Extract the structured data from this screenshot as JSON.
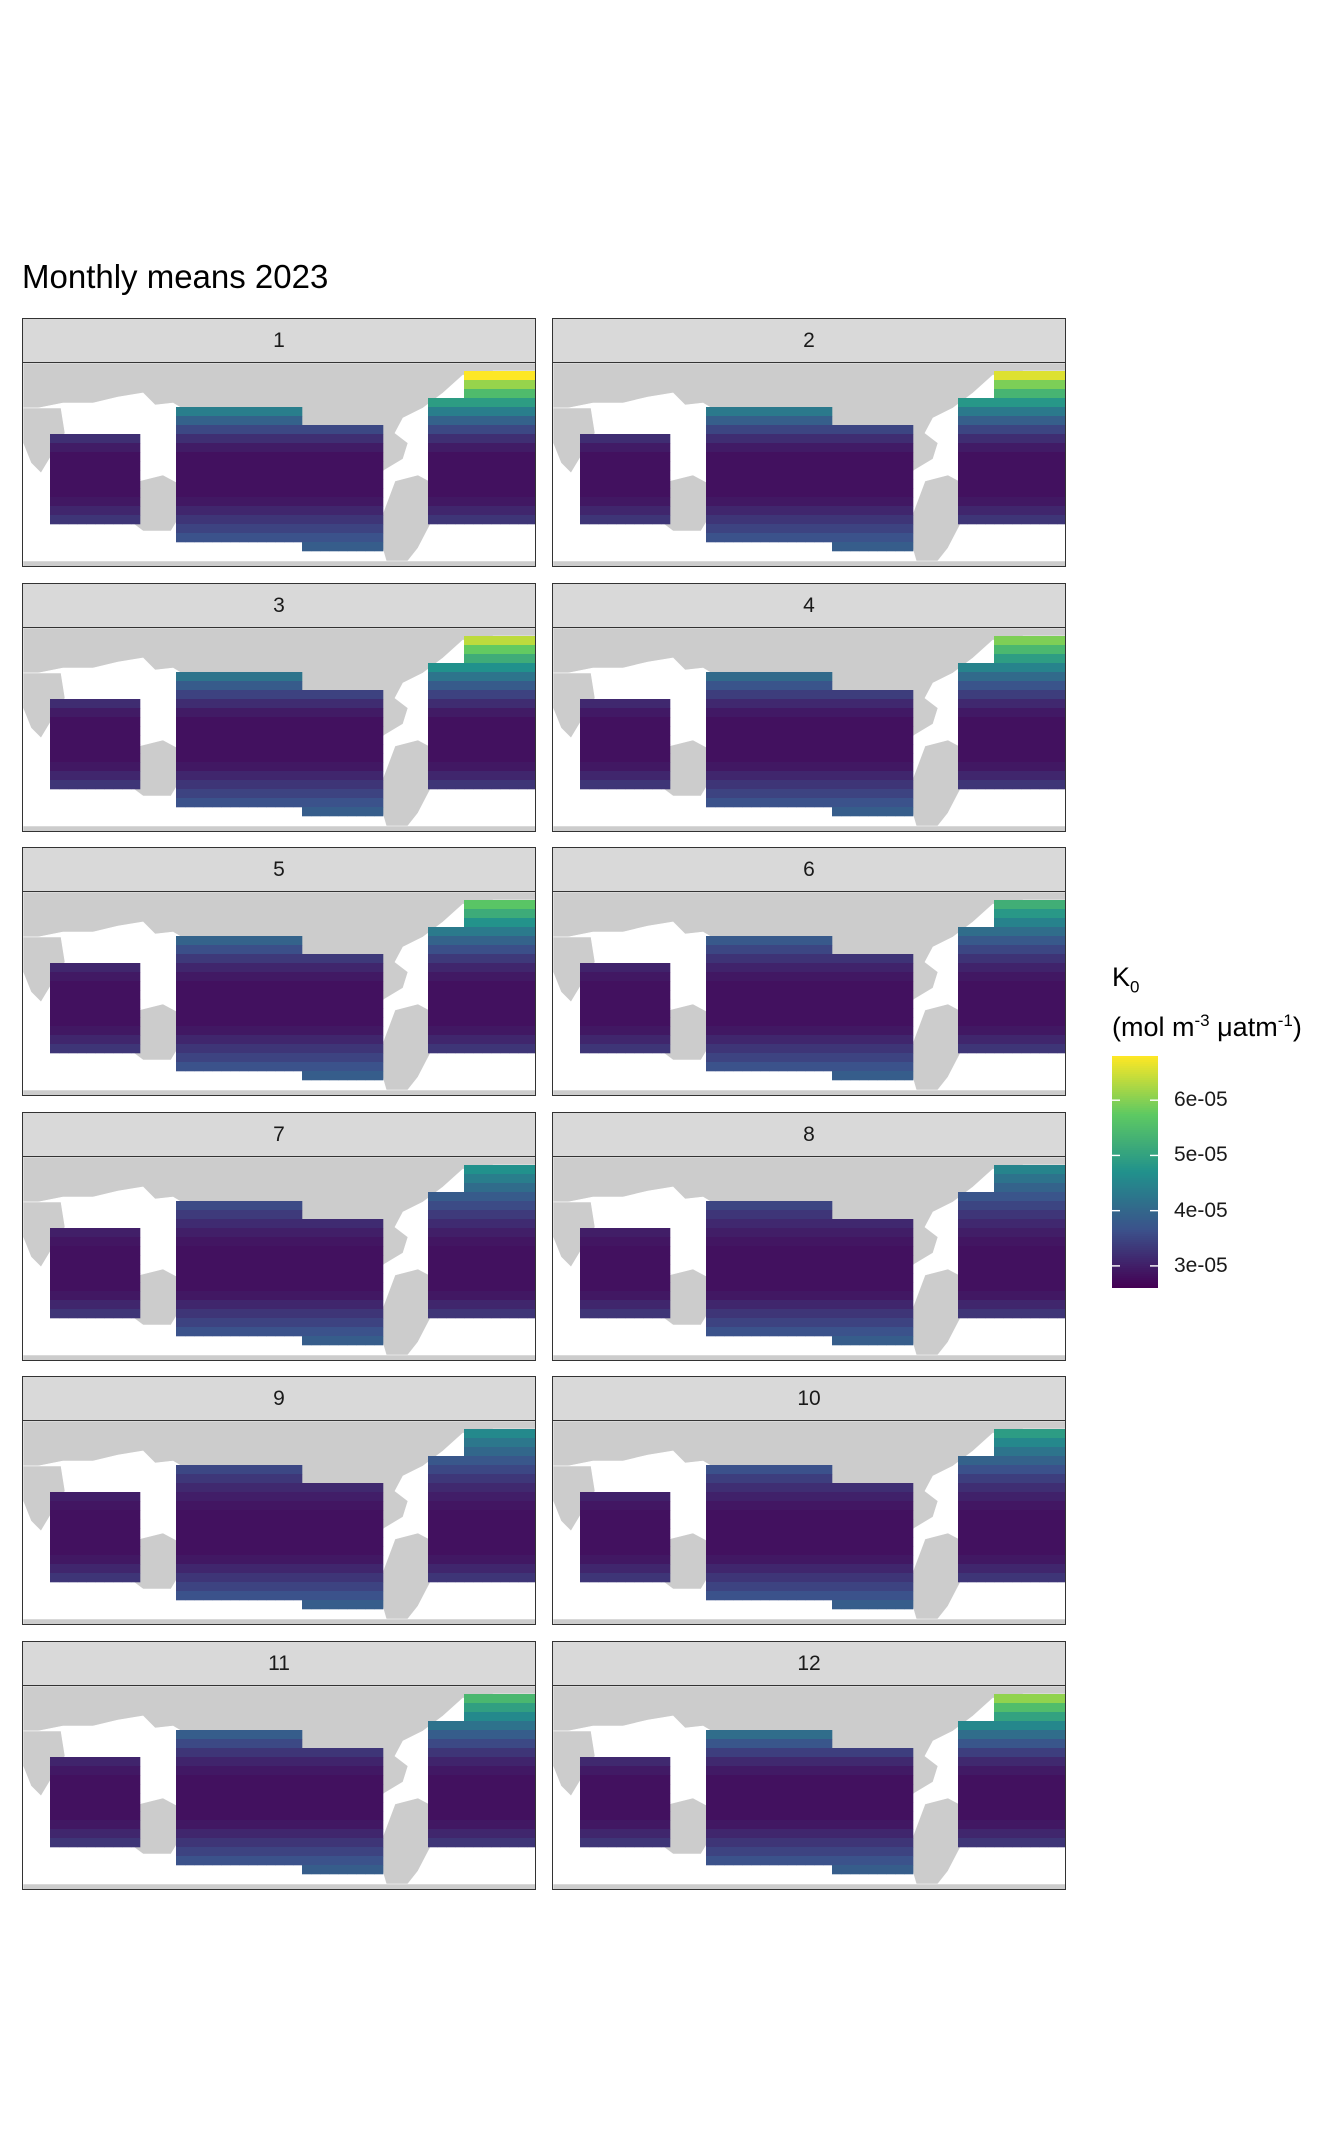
{
  "title": "Monthly means 2023",
  "panels": [
    {
      "label": "1",
      "north_level": 0.95
    },
    {
      "label": "2",
      "north_level": 0.9
    },
    {
      "label": "3",
      "north_level": 0.85
    },
    {
      "label": "4",
      "north_level": 0.75
    },
    {
      "label": "5",
      "north_level": 0.68
    },
    {
      "label": "6",
      "north_level": 0.58
    },
    {
      "label": "7",
      "north_level": 0.45
    },
    {
      "label": "8",
      "north_level": 0.4
    },
    {
      "label": "9",
      "north_level": 0.42
    },
    {
      "label": "10",
      "north_level": 0.5
    },
    {
      "label": "11",
      "north_level": 0.62
    },
    {
      "label": "12",
      "north_level": 0.78
    }
  ],
  "legend": {
    "title_main": "K",
    "title_sub": "0",
    "unit_prefix": "(mol m",
    "unit_exp1": "-3",
    "unit_mid": " μatm",
    "unit_exp2": "-1",
    "unit_suffix": ")",
    "range": [
      2.6e-05,
      6.8e-05
    ],
    "ticks": [
      {
        "value": 6e-05,
        "label": "6e-05"
      },
      {
        "value": 5e-05,
        "label": "5e-05"
      },
      {
        "value": 4e-05,
        "label": "4e-05"
      },
      {
        "value": 3e-05,
        "label": "3e-05"
      }
    ],
    "colors": [
      "#440154",
      "#3b528b",
      "#21918c",
      "#5ec962",
      "#fde725"
    ]
  },
  "land_color": "#cccccc"
}
